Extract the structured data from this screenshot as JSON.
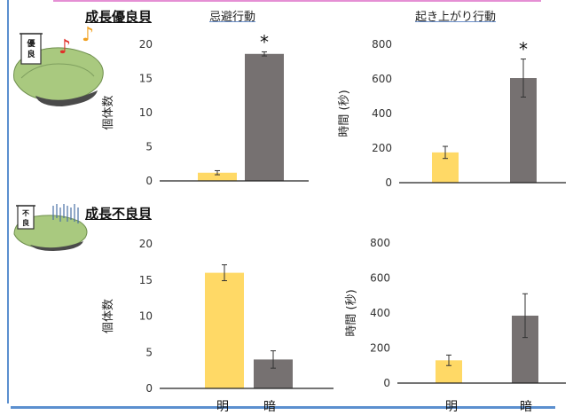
{
  "headings": {
    "good": "成長優良貝",
    "poor": "成長不良貝",
    "left_col": "忌避行動",
    "right_col": "起き上がり行動"
  },
  "icons": {
    "good_flag": "優良",
    "poor_flag": "不良"
  },
  "colors": {
    "light": "#FFD966",
    "dark": "#767171"
  },
  "chart_data": [
    {
      "type": "bar",
      "title": "",
      "categories": [
        "明",
        "暗"
      ],
      "values": [
        1.2,
        18.6
      ],
      "errors": [
        0.3,
        0.3
      ],
      "annotations": [
        "",
        "*"
      ],
      "ylabel": "個体数",
      "ylim": [
        0,
        20
      ],
      "yticks": [
        "0",
        "5",
        "10",
        "15",
        "20"
      ],
      "grid": false
    },
    {
      "type": "bar",
      "title": "",
      "categories": [
        "明",
        "暗"
      ],
      "values": [
        175,
        605
      ],
      "errors": [
        35,
        110
      ],
      "annotations": [
        "",
        "*"
      ],
      "ylabel": "時間 (秒)",
      "ylim": [
        0,
        800
      ],
      "yticks": [
        "0",
        "200",
        "400",
        "600",
        "800"
      ],
      "grid": false
    },
    {
      "type": "bar",
      "title": "",
      "categories": [
        "明",
        "暗"
      ],
      "values": [
        16,
        4
      ],
      "errors": [
        1.1,
        1.2
      ],
      "annotations": [
        "",
        ""
      ],
      "ylabel": "個体数",
      "ylim": [
        0,
        20
      ],
      "yticks": [
        "0",
        "5",
        "10",
        "15",
        "20"
      ],
      "grid": false
    },
    {
      "type": "bar",
      "title": "",
      "categories": [
        "明",
        "暗"
      ],
      "values": [
        130,
        385
      ],
      "errors": [
        30,
        125
      ],
      "annotations": [
        "",
        ""
      ],
      "ylabel": "時間 (秒)",
      "ylim": [
        0,
        800
      ],
      "yticks": [
        "0",
        "200",
        "400",
        "600",
        "800"
      ],
      "grid": false
    }
  ],
  "category_labels": [
    "明",
    "暗"
  ]
}
